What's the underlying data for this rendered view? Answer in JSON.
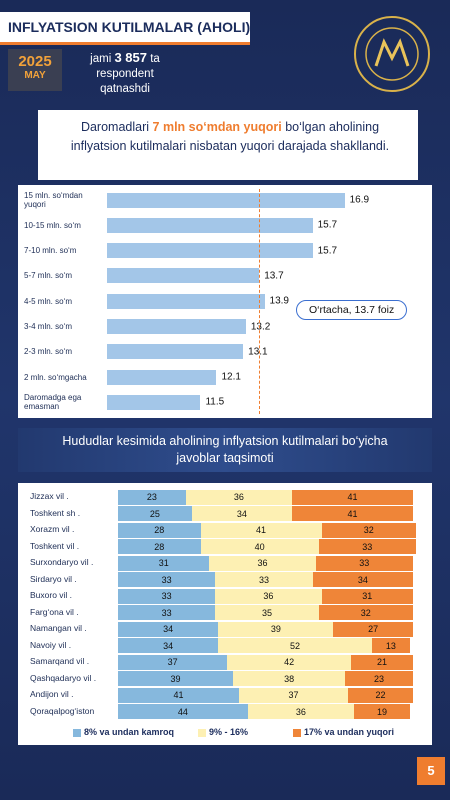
{
  "header": {
    "title": "INFLYATSION KUTILMALAR (AHOLI)",
    "year": "2025",
    "month": "MAY",
    "respondents": {
      "prefix": "jami",
      "count": "3 857",
      "suffix": "ta respondent qatnashdi"
    }
  },
  "callout": {
    "before": "Daromadlari",
    "highlight": "7 mln so‘mdan yuqori",
    "after": "bo‘lgan aholining inflyatsion kutilmalari nisbatan yuqori darajada shakllandi."
  },
  "section_title": "Hududlar kesimida aholining inflyatsion kutilmalari bo‘yicha javoblar taqsimoti",
  "chart_data": [
    {
      "type": "bar",
      "orientation": "horizontal",
      "categories": [
        "15 mln. so‘mdan yuqori",
        "10-15 mln. so‘m",
        "7-10 mln. so‘m",
        "5-7 mln. so‘m",
        "4-5 mln. so‘m",
        "3-4 mln. so‘m",
        "2-3 mln. so‘m",
        "2 mln. so‘mgacha",
        "Daromadga ega emasman"
      ],
      "values": [
        16.9,
        15.7,
        15.7,
        13.7,
        13.9,
        13.2,
        13.1,
        12.1,
        11.5
      ],
      "color": "#a3c6e8",
      "xlim": [
        8,
        18
      ],
      "reference_line": {
        "value": 13.7,
        "label": "O‘rtacha, 13.7 foiz",
        "color": "#ef7d2f"
      }
    },
    {
      "type": "stacked_bar",
      "orientation": "horizontal",
      "categories": [
        "Jizzax vil .",
        "Toshkent sh .",
        "Xorazm vil .",
        "Toshkent vil .",
        "Surxondaryo vil .",
        "Sirdaryo vil .",
        "Buxoro vil .",
        "Farg‘ona vil .",
        "Namangan vil .",
        "Navoiy vil .",
        "Samarqand vil .",
        "Qashqadaryo vil .",
        "Andijon vil .",
        "Qoraqalpog‘iston"
      ],
      "series": [
        {
          "name": "8% va undan kamroq",
          "color": "#86b8dd",
          "values": [
            23,
            25,
            28,
            28,
            31,
            33,
            33,
            33,
            34,
            34,
            37,
            39,
            41,
            44
          ]
        },
        {
          "name": "9% - 16%",
          "color": "#fdf0b3",
          "values": [
            36,
            34,
            41,
            40,
            36,
            33,
            36,
            35,
            39,
            52,
            42,
            38,
            37,
            36
          ]
        },
        {
          "name": "17% va undan yuqori",
          "color": "#ef8538",
          "values": [
            41,
            41,
            32,
            33,
            33,
            34,
            31,
            32,
            27,
            13,
            21,
            23,
            22,
            19
          ]
        }
      ],
      "xlim": [
        0,
        100
      ]
    }
  ],
  "page_number": "5"
}
